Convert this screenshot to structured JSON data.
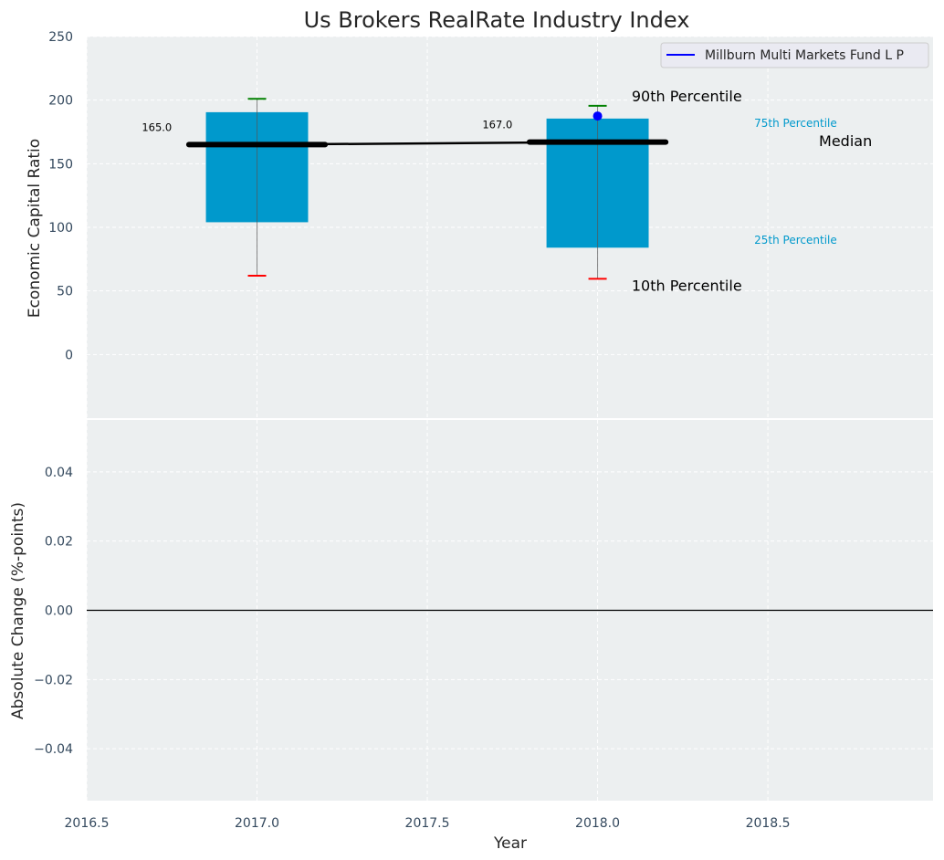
{
  "chart_data": [
    {
      "type": "box",
      "title": "Us Brokers RealRate Industry Index",
      "xlabel": "",
      "ylabel": "Economic Capital Ratio",
      "xlim": [
        2016.5,
        2018.985
      ],
      "ylim": [
        -50,
        250
      ],
      "yticks": [
        0,
        50,
        100,
        150,
        200,
        250
      ],
      "grid": true,
      "boxes": [
        {
          "x": 2017,
          "p10": 62,
          "p25": 104,
          "median": 165,
          "p75": 190.5,
          "p90": 201,
          "median_label": "165.0"
        },
        {
          "x": 2018,
          "p10": 59.5,
          "p25": 84,
          "median": 167,
          "p75": 185.5,
          "p90": 195.5,
          "median_label": "167.0"
        }
      ],
      "series": [
        {
          "name": "Millburn Multi Markets Fund L P",
          "color": "#0000ff",
          "x": [
            2018
          ],
          "y": [
            187.5
          ]
        }
      ],
      "median_line": {
        "x": [
          2017,
          2018
        ],
        "y": [
          165,
          167
        ]
      },
      "legend": {
        "placement": "top-right",
        "entries": [
          "Millburn Multi Markets Fund L P"
        ]
      },
      "annotations": [
        {
          "text": "90th Percentile",
          "x": 2018.1,
          "y": 199,
          "color": "#000000",
          "size": "large"
        },
        {
          "text": "75th Percentile",
          "x": 2018.46,
          "y": 179,
          "color": "#0099cc",
          "size": "small"
        },
        {
          "text": "Median",
          "x": 2018.65,
          "y": 164,
          "color": "#000000",
          "size": "large"
        },
        {
          "text": "25th Percentile",
          "x": 2018.46,
          "y": 87,
          "color": "#0099cc",
          "size": "small"
        },
        {
          "text": "10th Percentile",
          "x": 2018.1,
          "y": 50,
          "color": "#000000",
          "size": "large"
        }
      ],
      "colors": {
        "box": "#0099cc",
        "p90": "#008000",
        "p10": "#ff0000",
        "background": "#eceff0"
      }
    },
    {
      "type": "line",
      "xlabel": "Year",
      "ylabel": "Absolute Change (%-points)",
      "xlim": [
        2016.5,
        2018.985
      ],
      "ylim": [
        -0.055,
        0.055
      ],
      "xticks": [
        2016.5,
        2017.0,
        2017.5,
        2018.0,
        2018.5
      ],
      "xtick_labels": [
        "2016.5",
        "2017.0",
        "2017.5",
        "2018.0",
        "2018.5"
      ],
      "yticks": [
        -0.04,
        -0.02,
        0.0,
        0.02,
        0.04
      ],
      "ytick_labels": [
        "−0.04",
        "−0.02",
        "0.00",
        "0.02",
        "0.04"
      ],
      "hline": 0,
      "series": []
    }
  ]
}
